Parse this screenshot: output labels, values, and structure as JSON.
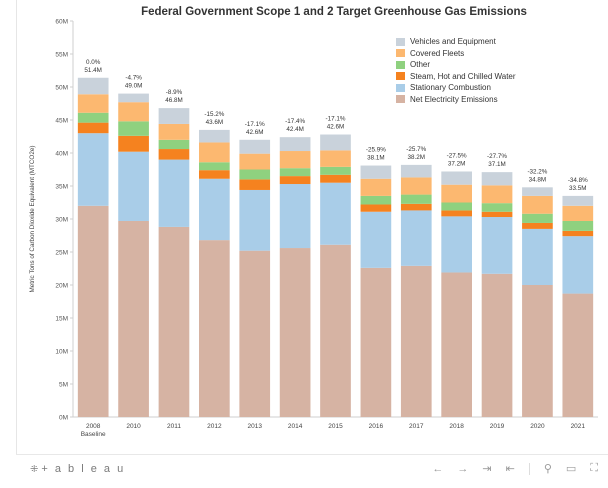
{
  "chart_data": {
    "type": "bar",
    "stacked": true,
    "title": "Federal Government Scope 1 and 2 Target Greenhouse Gas Emissions",
    "ylabel": "Metric Tons of Carbon Dioxide Equivalent (MTCO2e)",
    "xlabel": "",
    "ylim": [
      0,
      60
    ],
    "yticks": [
      "0M",
      "5M",
      "10M",
      "15M",
      "20M",
      "25M",
      "30M",
      "35M",
      "40M",
      "45M",
      "50M",
      "55M",
      "60M"
    ],
    "categories": [
      "2008 Baseline",
      "2010",
      "2011",
      "2012",
      "2013",
      "2014",
      "2015",
      "2016",
      "2017",
      "2018",
      "2019",
      "2020",
      "2021"
    ],
    "series": [
      {
        "name": "Net Electricity Emissions",
        "color": "#d6b3a3",
        "values": [
          32.0,
          29.7,
          28.8,
          26.8,
          25.2,
          25.6,
          26.1,
          22.6,
          22.9,
          21.9,
          21.7,
          20.0,
          18.7
        ]
      },
      {
        "name": "Stationary Combustion",
        "color": "#a9cde8",
        "values": [
          11.0,
          10.5,
          10.2,
          9.3,
          9.2,
          9.7,
          9.4,
          8.5,
          8.4,
          8.5,
          8.6,
          8.5,
          8.7
        ]
      },
      {
        "name": "Steam, Hot and Chilled Water",
        "color": "#f5821f",
        "values": [
          1.6,
          2.4,
          1.6,
          1.3,
          1.6,
          1.2,
          1.2,
          1.1,
          1.0,
          0.9,
          0.8,
          0.9,
          0.8
        ]
      },
      {
        "name": "Other",
        "color": "#8fd17f",
        "values": [
          1.5,
          2.2,
          1.4,
          1.2,
          1.5,
          1.2,
          1.2,
          1.3,
          1.4,
          1.2,
          1.3,
          1.4,
          1.5
        ]
      },
      {
        "name": "Covered Fleets",
        "color": "#fcb870",
        "values": [
          2.8,
          2.9,
          2.4,
          3.0,
          2.4,
          2.6,
          2.5,
          2.6,
          2.6,
          2.7,
          2.7,
          2.7,
          2.3
        ]
      },
      {
        "name": "Vehicles and Equipment",
        "color": "#c9d2db",
        "values": [
          2.5,
          1.3,
          2.4,
          1.9,
          2.1,
          2.1,
          2.4,
          2.0,
          1.9,
          2.0,
          2.0,
          1.3,
          1.5
        ]
      }
    ],
    "totals_labels": [
      "0.0%\n51.4M",
      "-4.7%\n49.0M",
      "-8.9%\n46.8M",
      "-15.2%\n43.6M",
      "-17.1%\n42.6M",
      "-17.4%\n42.4M",
      "-17.1%\n42.6M",
      "-25.9%\n38.1M",
      "-25.7%\n38.2M",
      "-27.5%\n37.2M",
      "-27.7%\n37.1M",
      "-32.2%\n34.8M",
      "-34.8%\n33.5M"
    ],
    "totals": [
      51.4,
      49.0,
      46.8,
      43.6,
      42.6,
      42.4,
      42.6,
      38.1,
      38.2,
      37.2,
      37.1,
      34.8,
      33.5
    ],
    "legend_placement": "top-right",
    "grid": false
  },
  "legend": [
    {
      "label": "Vehicles and Equipment",
      "color": "#c9d2db"
    },
    {
      "label": "Covered Fleets",
      "color": "#fcb870"
    },
    {
      "label": "Other",
      "color": "#8fd17f"
    },
    {
      "label": "Steam, Hot and Chilled Water",
      "color": "#f5821f"
    },
    {
      "label": "Stationary Combustion",
      "color": "#a9cde8"
    },
    {
      "label": "Net Electricity Emissions",
      "color": "#d6b3a3"
    }
  ],
  "footer": {
    "brand": "+ a b l e a u",
    "brand_mark": "⁜",
    "icons": [
      "undo-icon",
      "redo-icon",
      "revert-icon",
      "pause-icon",
      "share-icon",
      "download-icon",
      "fullscreen-icon"
    ]
  }
}
